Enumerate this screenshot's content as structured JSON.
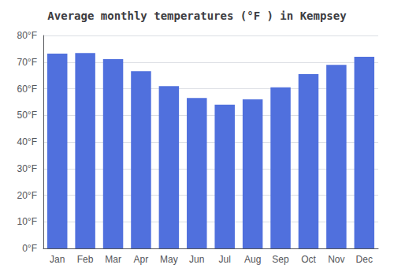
{
  "chart_data": {
    "type": "bar",
    "title": "Average monthly temperatures (°F ) in Kempsey",
    "categories": [
      "Jan",
      "Feb",
      "Mar",
      "Apr",
      "May",
      "Jun",
      "Jul",
      "Aug",
      "Sep",
      "Oct",
      "Nov",
      "Dec"
    ],
    "values": [
      73.2,
      73.4,
      71.1,
      66.6,
      61.0,
      56.5,
      54.0,
      56.0,
      60.5,
      65.5,
      69.0,
      72.0
    ],
    "ylim": [
      0,
      80
    ],
    "yticks": [
      {
        "value": 0,
        "label": "0°F"
      },
      {
        "value": 10,
        "label": "10°F"
      },
      {
        "value": 20,
        "label": "20°F"
      },
      {
        "value": 30,
        "label": "30°F"
      },
      {
        "value": 40,
        "label": "40°F"
      },
      {
        "value": 50,
        "label": "50°F"
      },
      {
        "value": 60,
        "label": "60°F"
      },
      {
        "value": 70,
        "label": "70°F"
      },
      {
        "value": 80,
        "label": "80°F"
      }
    ],
    "grid": true
  }
}
